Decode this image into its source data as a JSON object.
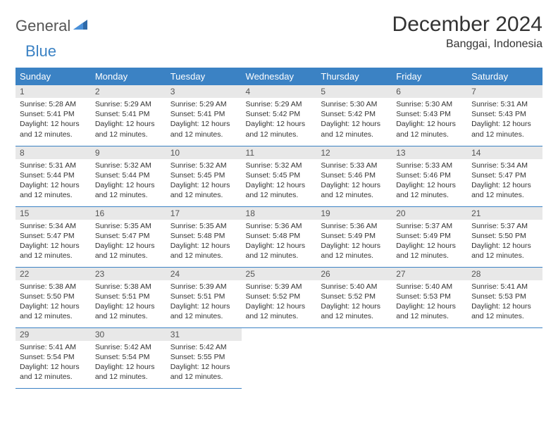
{
  "logo": {
    "text1": "General",
    "text2": "Blue"
  },
  "title": {
    "month_year": "December 2024",
    "location": "Banggai, Indonesia"
  },
  "colors": {
    "header_bg": "#3b82c4",
    "header_fg": "#ffffff",
    "daynum_bg": "#e8e8e8",
    "row_border": "#3b82c4",
    "logo_gray": "#555555",
    "logo_blue": "#3b82c4"
  },
  "day_headers": [
    "Sunday",
    "Monday",
    "Tuesday",
    "Wednesday",
    "Thursday",
    "Friday",
    "Saturday"
  ],
  "weeks": [
    [
      {
        "n": "1",
        "sr": "5:28 AM",
        "ss": "5:41 PM",
        "dl": "12 hours and 12 minutes."
      },
      {
        "n": "2",
        "sr": "5:29 AM",
        "ss": "5:41 PM",
        "dl": "12 hours and 12 minutes."
      },
      {
        "n": "3",
        "sr": "5:29 AM",
        "ss": "5:41 PM",
        "dl": "12 hours and 12 minutes."
      },
      {
        "n": "4",
        "sr": "5:29 AM",
        "ss": "5:42 PM",
        "dl": "12 hours and 12 minutes."
      },
      {
        "n": "5",
        "sr": "5:30 AM",
        "ss": "5:42 PM",
        "dl": "12 hours and 12 minutes."
      },
      {
        "n": "6",
        "sr": "5:30 AM",
        "ss": "5:43 PM",
        "dl": "12 hours and 12 minutes."
      },
      {
        "n": "7",
        "sr": "5:31 AM",
        "ss": "5:43 PM",
        "dl": "12 hours and 12 minutes."
      }
    ],
    [
      {
        "n": "8",
        "sr": "5:31 AM",
        "ss": "5:44 PM",
        "dl": "12 hours and 12 minutes."
      },
      {
        "n": "9",
        "sr": "5:32 AM",
        "ss": "5:44 PM",
        "dl": "12 hours and 12 minutes."
      },
      {
        "n": "10",
        "sr": "5:32 AM",
        "ss": "5:45 PM",
        "dl": "12 hours and 12 minutes."
      },
      {
        "n": "11",
        "sr": "5:32 AM",
        "ss": "5:45 PM",
        "dl": "12 hours and 12 minutes."
      },
      {
        "n": "12",
        "sr": "5:33 AM",
        "ss": "5:46 PM",
        "dl": "12 hours and 12 minutes."
      },
      {
        "n": "13",
        "sr": "5:33 AM",
        "ss": "5:46 PM",
        "dl": "12 hours and 12 minutes."
      },
      {
        "n": "14",
        "sr": "5:34 AM",
        "ss": "5:47 PM",
        "dl": "12 hours and 12 minutes."
      }
    ],
    [
      {
        "n": "15",
        "sr": "5:34 AM",
        "ss": "5:47 PM",
        "dl": "12 hours and 12 minutes."
      },
      {
        "n": "16",
        "sr": "5:35 AM",
        "ss": "5:47 PM",
        "dl": "12 hours and 12 minutes."
      },
      {
        "n": "17",
        "sr": "5:35 AM",
        "ss": "5:48 PM",
        "dl": "12 hours and 12 minutes."
      },
      {
        "n": "18",
        "sr": "5:36 AM",
        "ss": "5:48 PM",
        "dl": "12 hours and 12 minutes."
      },
      {
        "n": "19",
        "sr": "5:36 AM",
        "ss": "5:49 PM",
        "dl": "12 hours and 12 minutes."
      },
      {
        "n": "20",
        "sr": "5:37 AM",
        "ss": "5:49 PM",
        "dl": "12 hours and 12 minutes."
      },
      {
        "n": "21",
        "sr": "5:37 AM",
        "ss": "5:50 PM",
        "dl": "12 hours and 12 minutes."
      }
    ],
    [
      {
        "n": "22",
        "sr": "5:38 AM",
        "ss": "5:50 PM",
        "dl": "12 hours and 12 minutes."
      },
      {
        "n": "23",
        "sr": "5:38 AM",
        "ss": "5:51 PM",
        "dl": "12 hours and 12 minutes."
      },
      {
        "n": "24",
        "sr": "5:39 AM",
        "ss": "5:51 PM",
        "dl": "12 hours and 12 minutes."
      },
      {
        "n": "25",
        "sr": "5:39 AM",
        "ss": "5:52 PM",
        "dl": "12 hours and 12 minutes."
      },
      {
        "n": "26",
        "sr": "5:40 AM",
        "ss": "5:52 PM",
        "dl": "12 hours and 12 minutes."
      },
      {
        "n": "27",
        "sr": "5:40 AM",
        "ss": "5:53 PM",
        "dl": "12 hours and 12 minutes."
      },
      {
        "n": "28",
        "sr": "5:41 AM",
        "ss": "5:53 PM",
        "dl": "12 hours and 12 minutes."
      }
    ],
    [
      {
        "n": "29",
        "sr": "5:41 AM",
        "ss": "5:54 PM",
        "dl": "12 hours and 12 minutes."
      },
      {
        "n": "30",
        "sr": "5:42 AM",
        "ss": "5:54 PM",
        "dl": "12 hours and 12 minutes."
      },
      {
        "n": "31",
        "sr": "5:42 AM",
        "ss": "5:55 PM",
        "dl": "12 hours and 12 minutes."
      },
      null,
      null,
      null,
      null
    ]
  ],
  "labels": {
    "sunrise": "Sunrise:",
    "sunset": "Sunset:",
    "daylight": "Daylight:"
  }
}
